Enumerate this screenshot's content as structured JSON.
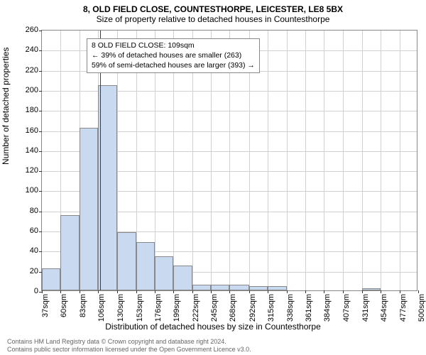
{
  "title_main": "8, OLD FIELD CLOSE, COUNTESTHORPE, LEICESTER, LE8 5BX",
  "title_sub": "Size of property relative to detached houses in Countesthorpe",
  "chart": {
    "type": "histogram",
    "ylabel": "Number of detached properties",
    "xlabel": "Distribution of detached houses by size in Countesthorpe",
    "ylim": [
      0,
      260
    ],
    "ytick_step": 20,
    "yticks": [
      0,
      20,
      40,
      60,
      80,
      100,
      120,
      140,
      160,
      180,
      200,
      220,
      240,
      260
    ],
    "xticks": [
      "37sqm",
      "60sqm",
      "83sqm",
      "106sqm",
      "130sqm",
      "153sqm",
      "176sqm",
      "199sqm",
      "222sqm",
      "245sqm",
      "268sqm",
      "292sqm",
      "315sqm",
      "338sqm",
      "361sqm",
      "384sqm",
      "407sqm",
      "431sqm",
      "454sqm",
      "477sqm",
      "500sqm"
    ],
    "xlim_sqm": [
      37,
      500
    ],
    "reference_line_sqm": 109,
    "bar_color": "#c9d9f0",
    "bar_border_color": "#888888",
    "grid_color": "#d0d0d0",
    "ref_line_color": "#cc0000",
    "background_color": "#ffffff",
    "plot_border_color": "#888888",
    "bars": [
      {
        "x_sqm": 37,
        "width_sqm": 23,
        "count": 22
      },
      {
        "x_sqm": 60,
        "width_sqm": 23,
        "count": 75
      },
      {
        "x_sqm": 83,
        "width_sqm": 23,
        "count": 162
      },
      {
        "x_sqm": 106,
        "width_sqm": 24,
        "count": 204
      },
      {
        "x_sqm": 130,
        "width_sqm": 23,
        "count": 58
      },
      {
        "x_sqm": 153,
        "width_sqm": 23,
        "count": 48
      },
      {
        "x_sqm": 176,
        "width_sqm": 23,
        "count": 34
      },
      {
        "x_sqm": 199,
        "width_sqm": 23,
        "count": 25
      },
      {
        "x_sqm": 222,
        "width_sqm": 23,
        "count": 6
      },
      {
        "x_sqm": 245,
        "width_sqm": 23,
        "count": 6
      },
      {
        "x_sqm": 268,
        "width_sqm": 24,
        "count": 6
      },
      {
        "x_sqm": 292,
        "width_sqm": 23,
        "count": 4
      },
      {
        "x_sqm": 315,
        "width_sqm": 23,
        "count": 4
      },
      {
        "x_sqm": 431,
        "width_sqm": 23,
        "count": 2
      }
    ],
    "info_box": {
      "line1": "8 OLD FIELD CLOSE: 109sqm",
      "line2": "← 39% of detached houses are smaller (263)",
      "line3": "59% of semi-detached houses are larger (393) →",
      "left_sqm": 92,
      "top_count": 252
    }
  },
  "footer": {
    "line1": "Contains HM Land Registry data © Crown copyright and database right 2024.",
    "line2": "Contains public sector information licensed under the Open Government Licence v3.0."
  }
}
